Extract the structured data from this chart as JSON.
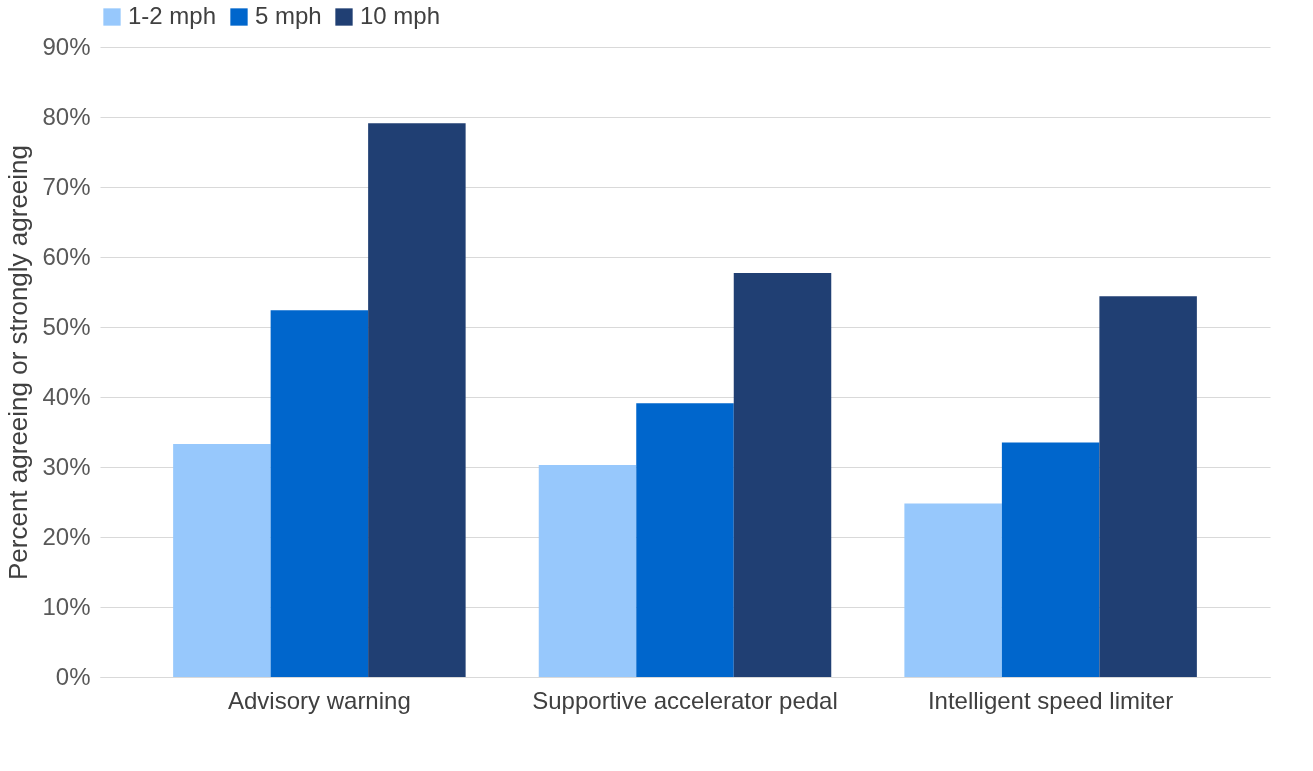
{
  "chart_data": {
    "type": "bar",
    "ylabel": "Percent agreeing or strongly agreeing",
    "categories": [
      "Advisory warning",
      "Supportive accelerator pedal",
      "Intelligent speed limiter"
    ],
    "series": [
      {
        "name": "1-2 mph",
        "color": "#97c8fc",
        "values": [
          33.3,
          30.3,
          24.8
        ]
      },
      {
        "name": "5 mph",
        "color": "#0066cc",
        "values": [
          52.4,
          39.1,
          33.5
        ]
      },
      {
        "name": "10 mph",
        "color": "#203f73",
        "values": [
          79.1,
          57.7,
          54.4
        ]
      }
    ],
    "ylim": [
      0,
      90
    ],
    "yticks": [
      {
        "value": 0,
        "label": "0%"
      },
      {
        "value": 10,
        "label": "10%"
      },
      {
        "value": 20,
        "label": "20%"
      },
      {
        "value": 30,
        "label": "30%"
      },
      {
        "value": 40,
        "label": "40%"
      },
      {
        "value": 50,
        "label": "50%"
      },
      {
        "value": 60,
        "label": "60%"
      },
      {
        "value": 70,
        "label": "70%"
      },
      {
        "value": 80,
        "label": "80%"
      },
      {
        "value": 90,
        "label": "90%"
      }
    ],
    "grid": "y",
    "legend": "top"
  }
}
